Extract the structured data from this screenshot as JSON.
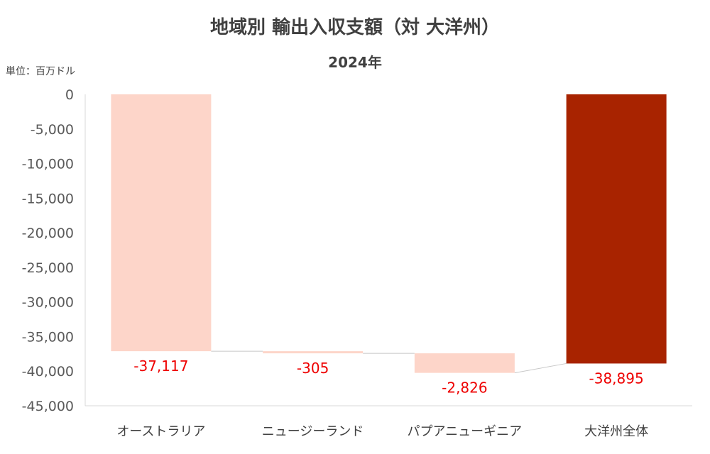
{
  "chart_data": {
    "type": "bar",
    "subtype": "waterfall",
    "title": "地域別 輸出入収支額（対 大洋州）",
    "subtitle": "2024年",
    "unit_label": "単位：百万ドル",
    "categories": [
      "オーストラリア",
      "ニュージーランド",
      "パプアニューギニア",
      "大洋州全体"
    ],
    "values": [
      -37117,
      -305,
      -2826,
      -38895
    ],
    "value_labels": [
      "-37,117",
      "-305",
      "-2,826",
      "-38,895"
    ],
    "bar_kinds": [
      "step",
      "step",
      "step",
      "total"
    ],
    "ylim": [
      -45000,
      0
    ],
    "yticks": [
      0,
      -5000,
      -10000,
      -15000,
      -20000,
      -25000,
      -30000,
      -35000,
      -40000,
      -45000
    ],
    "ytick_labels": [
      "0",
      "-5,000",
      "-10,000",
      "-15,000",
      "-20,000",
      "-25,000",
      "-30,000",
      "-35,000",
      "-40,000",
      "-45,000"
    ],
    "colors": {
      "step_bar": "#fdd5c9",
      "total_bar": "#a82300",
      "value_label": "#ee0000",
      "connector": "#c8c8c8",
      "axis": "#d9d9d9"
    },
    "grid": false,
    "legend": false
  }
}
